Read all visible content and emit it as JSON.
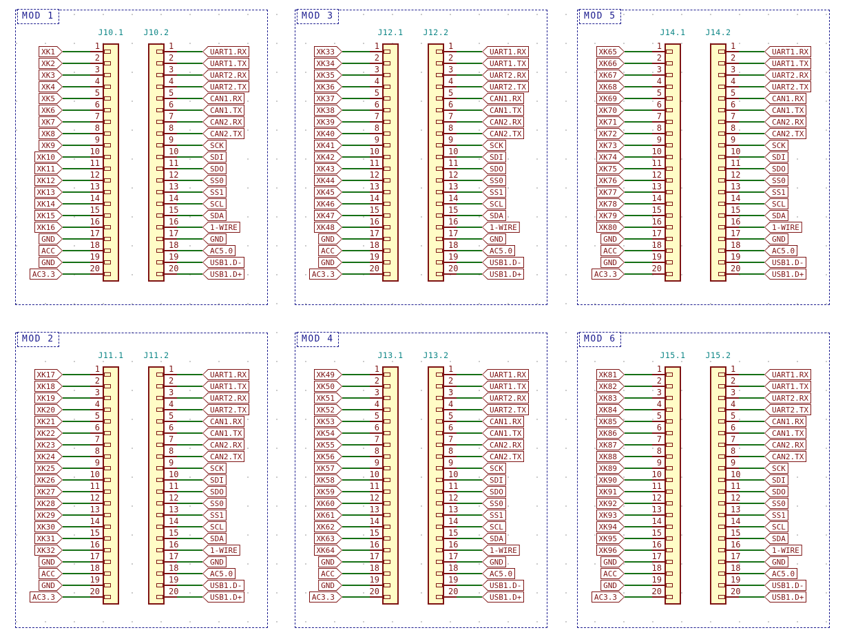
{
  "schematic": {
    "pins": [
      "1",
      "2",
      "3",
      "4",
      "5",
      "6",
      "7",
      "8",
      "9",
      "10",
      "11",
      "12",
      "13",
      "14",
      "15",
      "16",
      "17",
      "18",
      "19",
      "20"
    ],
    "right_labels": [
      "UART1.RX",
      "UART1.TX",
      "UART2.RX",
      "UART2.TX",
      "CAN1.RX",
      "CAN1.TX",
      "CAN2.RX",
      "CAN2.TX",
      "SCK",
      "SDI",
      "SDO",
      "SS0",
      "SS1",
      "SCL",
      "SDA",
      "1-WIRE",
      "GND",
      "AC5.0",
      "USB1.D-",
      "USB1.D+"
    ],
    "modules": [
      {
        "name": "MOD 1",
        "conn1": "J10.1",
        "conn2": "J10.2",
        "left_labels": [
          "XK1",
          "XK2",
          "XK3",
          "XK4",
          "XK5",
          "XK6",
          "XK7",
          "XK8",
          "XK9",
          "XK10",
          "XK11",
          "XK12",
          "XK13",
          "XK14",
          "XK15",
          "XK16",
          "GND",
          "ACC",
          "GND",
          "AC3.3"
        ]
      },
      {
        "name": "MOD 3",
        "conn1": "J12.1",
        "conn2": "J12.2",
        "left_labels": [
          "XK33",
          "XK34",
          "XK35",
          "XK36",
          "XK37",
          "XK38",
          "XK39",
          "XK40",
          "XK41",
          "XK42",
          "XK43",
          "XK44",
          "XK45",
          "XK46",
          "XK47",
          "XK48",
          "GND",
          "ACC",
          "GND",
          "AC3.3"
        ]
      },
      {
        "name": "MOD 5",
        "conn1": "J14.1",
        "conn2": "J14.2",
        "left_labels": [
          "XK65",
          "XK66",
          "XK67",
          "XK68",
          "XK69",
          "XK70",
          "XK71",
          "XK72",
          "XK73",
          "XK74",
          "XK75",
          "XK76",
          "XK77",
          "XK78",
          "XK79",
          "XK80",
          "GND",
          "ACC",
          "GND",
          "AC3.3"
        ]
      },
      {
        "name": "MOD 2",
        "conn1": "J11.1",
        "conn2": "J11.2",
        "left_labels": [
          "XK17",
          "XK18",
          "XK19",
          "XK20",
          "XK21",
          "XK22",
          "XK23",
          "XK24",
          "XK25",
          "XK26",
          "XK27",
          "XK28",
          "XK29",
          "XK30",
          "XK31",
          "XK32",
          "GND",
          "ACC",
          "GND",
          "AC3.3"
        ]
      },
      {
        "name": "MOD 4",
        "conn1": "J13.1",
        "conn2": "J13.2",
        "left_labels": [
          "XK49",
          "XK50",
          "XK51",
          "XK52",
          "XK53",
          "XK54",
          "XK55",
          "XK56",
          "XK57",
          "XK58",
          "XK59",
          "XK60",
          "XK61",
          "XK62",
          "XK63",
          "XK64",
          "GND",
          "ACC",
          "GND",
          "AC3.3"
        ]
      },
      {
        "name": "MOD 6",
        "conn1": "J15.1",
        "conn2": "J15.2",
        "left_labels": [
          "XK81",
          "XK82",
          "XK83",
          "XK84",
          "XK85",
          "XK86",
          "XK87",
          "XK88",
          "XK89",
          "XK90",
          "XK91",
          "XK92",
          "XK93",
          "XK94",
          "XK95",
          "XK96",
          "GND",
          "ACC",
          "GND",
          "AC3.3"
        ]
      }
    ],
    "colors": {
      "wire_green": "#157015",
      "symbol_outline": "#7d1212",
      "symbol_fill": "#fffcc6",
      "label_red": "#7d1212",
      "reference_teal": "#0b8585",
      "annotation_navy": "#1b1b8e"
    }
  }
}
